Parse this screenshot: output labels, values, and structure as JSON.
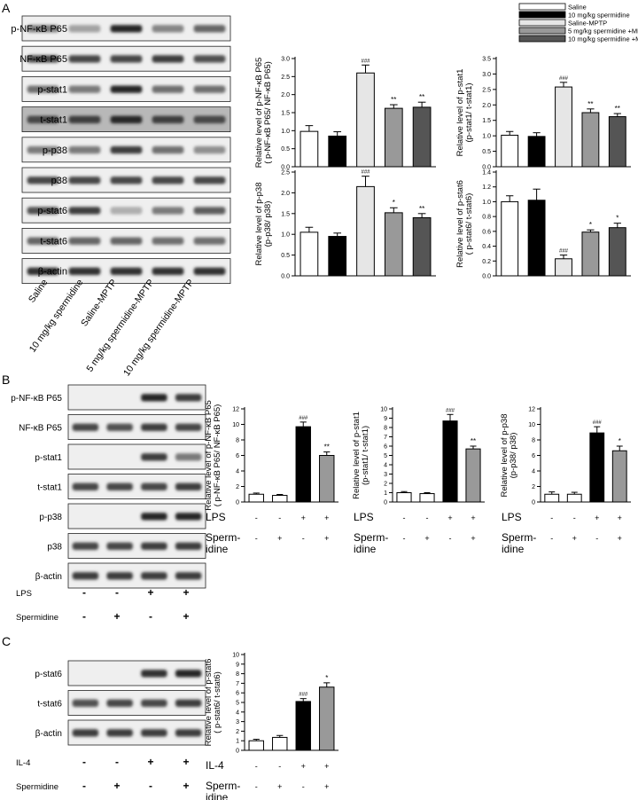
{
  "figure": {
    "panelA": {
      "letter": "A",
      "blot_rows": [
        "p-NF-κB P65",
        "NF-κB P65",
        "p-stat1",
        "t-stat1",
        "p-p38",
        "p38",
        "p-stat6",
        "t-stat6",
        "β-actin"
      ],
      "lane_labels": [
        "Saline",
        "10 mg/kg spermidine",
        "Saline-MPTP",
        "5 mg/kg spermidine-MPTP",
        "10 mg/kg spermidine-MPTP"
      ],
      "legend": [
        {
          "label": "Saline",
          "color": "#ffffff"
        },
        {
          "label": "10 mg/kg spermidine",
          "color": "#000000"
        },
        {
          "label": "Saline-MPTP",
          "color": "#e6e6e6"
        },
        {
          "label": "5 mg/kg spermidine +MPTP",
          "color": "#999999"
        },
        {
          "label": "10 mg/kg spermidine +MPTP",
          "color": "#555555"
        }
      ]
    },
    "panelB": {
      "letter": "B",
      "blot_rows": [
        "p-NF-κB P65",
        "NF-κB P65",
        "p-stat1",
        "t-stat1",
        "p-p38",
        "p38",
        "β-actin"
      ],
      "treatments": [
        {
          "label": "LPS",
          "signs": [
            "-",
            "-",
            "+",
            "+"
          ]
        },
        {
          "label": "Spermidine",
          "signs": [
            "-",
            "+",
            "-",
            "+"
          ]
        }
      ],
      "chart_treatments": [
        {
          "label": "LPS",
          "signs": [
            "-",
            "-",
            "+",
            "+"
          ]
        },
        {
          "label": "Sperm-\nidine",
          "signs": [
            "-",
            "+",
            "-",
            "+"
          ]
        }
      ]
    },
    "panelC": {
      "letter": "C",
      "blot_rows": [
        "p-stat6",
        "t-stat6",
        "β-actin"
      ],
      "treatments": [
        {
          "label": "IL-4",
          "signs": [
            "-",
            "-",
            "+",
            "+"
          ]
        },
        {
          "label": "Spermidine",
          "signs": [
            "-",
            "+",
            "-",
            "+"
          ]
        }
      ],
      "chart_treatments": [
        {
          "label": "IL-4",
          "signs": [
            "-",
            "-",
            "+",
            "+"
          ]
        },
        {
          "label": "Sperm-\nidine",
          "signs": [
            "-",
            "+",
            "-",
            "+"
          ]
        }
      ]
    }
  },
  "chart_data": [
    {
      "id": "A1",
      "type": "bar",
      "ylabel": [
        "Relative level of p-NF-κB P65",
        "( p-NF-κB P65/ NF-κB P65)"
      ],
      "ylim": [
        0,
        3.0
      ],
      "ticks": [
        0,
        0.5,
        1.0,
        1.5,
        2.0,
        2.5,
        3.0
      ],
      "tick_labels": [
        "0.0",
        "0.5",
        "1.0",
        "1.5",
        "2.0",
        "2.5",
        "3.0"
      ],
      "values": [
        0.98,
        0.85,
        2.6,
        1.62,
        1.65
      ],
      "errors": [
        0.16,
        0.12,
        0.22,
        0.1,
        0.14
      ],
      "colors": [
        "#ffffff",
        "#000000",
        "#e6e6e6",
        "#999999",
        "#555555"
      ],
      "sig": [
        "",
        "",
        "###",
        "**",
        "**"
      ]
    },
    {
      "id": "A2",
      "type": "bar",
      "ylabel": [
        "Relative level of p-stat1",
        "(p-stat1/ t-stat1)"
      ],
      "ylim": [
        0,
        3.5
      ],
      "ticks": [
        0,
        0.5,
        1.0,
        1.5,
        2.0,
        2.5,
        3.0,
        3.5
      ],
      "tick_labels": [
        "0.0",
        "0.5",
        "1.0",
        "1.5",
        "2.0",
        "2.5",
        "3.0",
        "3.5"
      ],
      "values": [
        1.02,
        0.98,
        2.58,
        1.75,
        1.62
      ],
      "errors": [
        0.12,
        0.12,
        0.15,
        0.12,
        0.1
      ],
      "colors": [
        "#ffffff",
        "#000000",
        "#e6e6e6",
        "#999999",
        "#555555"
      ],
      "sig": [
        "",
        "",
        "###",
        "**",
        "**"
      ]
    },
    {
      "id": "A3",
      "type": "bar",
      "ylabel": [
        "Relative level of p-p38",
        "(p-p38/ p38)"
      ],
      "ylim": [
        0,
        2.5
      ],
      "ticks": [
        0,
        0.5,
        1.0,
        1.5,
        2.0,
        2.5
      ],
      "tick_labels": [
        "0.0",
        "0.5",
        "1.0",
        "1.5",
        "2.0",
        "2.5"
      ],
      "values": [
        1.05,
        0.95,
        2.15,
        1.52,
        1.4
      ],
      "errors": [
        0.12,
        0.08,
        0.25,
        0.12,
        0.1
      ],
      "colors": [
        "#ffffff",
        "#000000",
        "#e6e6e6",
        "#999999",
        "#555555"
      ],
      "sig": [
        "",
        "",
        "###",
        "*",
        "**"
      ]
    },
    {
      "id": "A4",
      "type": "bar",
      "ylabel": [
        "Relative level of p-stat6",
        "( p-stat6/ t-stat6)"
      ],
      "ylim": [
        0,
        1.4
      ],
      "ticks": [
        0,
        0.2,
        0.4,
        0.6,
        0.8,
        1.0,
        1.2,
        1.4
      ],
      "tick_labels": [
        "0.0",
        "0.2",
        "0.4",
        "0.6",
        "0.8",
        "1.0",
        "1.2",
        "1.4"
      ],
      "values": [
        1.0,
        1.02,
        0.23,
        0.59,
        0.65
      ],
      "errors": [
        0.08,
        0.15,
        0.05,
        0.03,
        0.06
      ],
      "colors": [
        "#ffffff",
        "#000000",
        "#e6e6e6",
        "#999999",
        "#555555"
      ],
      "sig": [
        "",
        "",
        "###",
        "*",
        "*"
      ]
    },
    {
      "id": "B1",
      "type": "bar",
      "ylabel": [
        "Relative level of p-NF-κB P65",
        "( p-NF-κB P65/ NF-κB P65)"
      ],
      "ylim": [
        0,
        12
      ],
      "ticks": [
        0,
        2,
        4,
        6,
        8,
        10,
        12
      ],
      "tick_labels": [
        "0",
        "2",
        "4",
        "6",
        "8",
        "10",
        "12"
      ],
      "values": [
        1.0,
        0.85,
        9.7,
        6.0
      ],
      "errors": [
        0.15,
        0.12,
        0.6,
        0.45
      ],
      "colors": [
        "#ffffff",
        "#ffffff",
        "#000000",
        "#999999"
      ],
      "sig": [
        "",
        "",
        "###",
        "**"
      ]
    },
    {
      "id": "B2",
      "type": "bar",
      "ylabel": [
        "Relative level of p-stat1",
        "(p-stat1/ t-stat1)"
      ],
      "ylim": [
        0,
        10
      ],
      "ticks": [
        0,
        1,
        2,
        3,
        4,
        5,
        6,
        7,
        8,
        9,
        10
      ],
      "tick_labels": [
        "0",
        "1",
        "2",
        "3",
        "4",
        "5",
        "6",
        "7",
        "8",
        "9",
        "10"
      ],
      "values": [
        1.0,
        0.9,
        8.7,
        5.7
      ],
      "errors": [
        0.12,
        0.1,
        0.7,
        0.3
      ],
      "colors": [
        "#ffffff",
        "#ffffff",
        "#000000",
        "#999999"
      ],
      "sig": [
        "",
        "",
        "###",
        "**"
      ]
    },
    {
      "id": "B3",
      "type": "bar",
      "ylabel": [
        "Relative level of p-p38",
        "(p-p38/ p38)"
      ],
      "ylim": [
        0,
        12
      ],
      "ticks": [
        0,
        2,
        4,
        6,
        8,
        10,
        12
      ],
      "tick_labels": [
        "0",
        "2",
        "4",
        "6",
        "8",
        "10",
        "12"
      ],
      "values": [
        1.0,
        1.0,
        8.9,
        6.6
      ],
      "errors": [
        0.3,
        0.25,
        0.8,
        0.6
      ],
      "colors": [
        "#ffffff",
        "#ffffff",
        "#000000",
        "#999999"
      ],
      "sig": [
        "",
        "",
        "###",
        "*"
      ]
    },
    {
      "id": "C1",
      "type": "bar",
      "ylabel": [
        "Relative level of p-stat6",
        "( p-stat6/ t-stat6)"
      ],
      "ylim": [
        0,
        10
      ],
      "ticks": [
        0,
        1,
        2,
        3,
        4,
        5,
        6,
        7,
        8,
        9,
        10
      ],
      "tick_labels": [
        "0",
        "1",
        "2",
        "3",
        "4",
        "5",
        "6",
        "7",
        "8",
        "9",
        "10"
      ],
      "values": [
        1.0,
        1.35,
        5.1,
        6.6
      ],
      "errors": [
        0.15,
        0.2,
        0.3,
        0.45
      ],
      "colors": [
        "#ffffff",
        "#ffffff",
        "#000000",
        "#999999"
      ],
      "sig": [
        "",
        "",
        "###",
        "*"
      ]
    }
  ]
}
